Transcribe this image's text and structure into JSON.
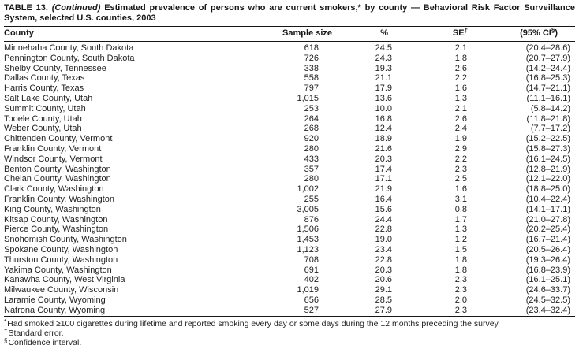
{
  "title": {
    "label": "TABLE 13.",
    "continued": "(Continued)",
    "text": "Estimated prevalence of persons who are current smokers,* by county — Behavioral Risk Factor Surveillance System, selected U.S. counties, 2003"
  },
  "table": {
    "columns": {
      "county": "County",
      "sample_size": "Sample size",
      "percent": "%",
      "se": "SE",
      "se_sup": "†",
      "ci_pre": "(95% CI",
      "ci_sup": "§",
      "ci_post": ")"
    },
    "rows": [
      {
        "county": "Minnehaha County, South Dakota",
        "n": "618",
        "pct": "24.5",
        "se": "2.1",
        "ci": "(20.4–28.6)"
      },
      {
        "county": "Pennington County, South Dakota",
        "n": "726",
        "pct": "24.3",
        "se": "1.8",
        "ci": "(20.7–27.9)"
      },
      {
        "county": "Shelby County, Tennessee",
        "n": "338",
        "pct": "19.3",
        "se": "2.6",
        "ci": "(14.2–24.4)"
      },
      {
        "county": "Dallas County, Texas",
        "n": "558",
        "pct": "21.1",
        "se": "2.2",
        "ci": "(16.8–25.3)"
      },
      {
        "county": "Harris County, Texas",
        "n": "797",
        "pct": "17.9",
        "se": "1.6",
        "ci": "(14.7–21.1)"
      },
      {
        "county": "Salt Lake County, Utah",
        "n": "1,015",
        "pct": "13.6",
        "se": "1.3",
        "ci": "(11.1–16.1)"
      },
      {
        "county": "Summit County, Utah",
        "n": "253",
        "pct": "10.0",
        "se": "2.1",
        "ci": "(5.8–14.2)"
      },
      {
        "county": "Tooele County, Utah",
        "n": "264",
        "pct": "16.8",
        "se": "2.6",
        "ci": "(11.8–21.8)"
      },
      {
        "county": "Weber County, Utah",
        "n": "268",
        "pct": "12.4",
        "se": "2.4",
        "ci": "(7.7–17.2)"
      },
      {
        "county": "Chittenden County, Vermont",
        "n": "920",
        "pct": "18.9",
        "se": "1.9",
        "ci": "(15.2–22.5)"
      },
      {
        "county": "Franklin County, Vermont",
        "n": "280",
        "pct": "21.6",
        "se": "2.9",
        "ci": "(15.8–27.3)"
      },
      {
        "county": "Windsor County, Vermont",
        "n": "433",
        "pct": "20.3",
        "se": "2.2",
        "ci": "(16.1–24.5)"
      },
      {
        "county": "Benton County, Washington",
        "n": "357",
        "pct": "17.4",
        "se": "2.3",
        "ci": "(12.8–21.9)"
      },
      {
        "county": "Chelan County, Washington",
        "n": "280",
        "pct": "17.1",
        "se": "2.5",
        "ci": "(12.1–22.0)"
      },
      {
        "county": "Clark County, Washington",
        "n": "1,002",
        "pct": "21.9",
        "se": "1.6",
        "ci": "(18.8–25.0)"
      },
      {
        "county": "Franklin County, Washington",
        "n": "255",
        "pct": "16.4",
        "se": "3.1",
        "ci": "(10.4–22.4)"
      },
      {
        "county": "King County, Washington",
        "n": "3,005",
        "pct": "15.6",
        "se": "0.8",
        "ci": "(14.1–17.1)"
      },
      {
        "county": "Kitsap County, Washington",
        "n": "876",
        "pct": "24.4",
        "se": "1.7",
        "ci": "(21.0–27.8)"
      },
      {
        "county": "Pierce County, Washington",
        "n": "1,506",
        "pct": "22.8",
        "se": "1.3",
        "ci": "(20.2–25.4)"
      },
      {
        "county": "Snohomish County, Washington",
        "n": "1,453",
        "pct": "19.0",
        "se": "1.2",
        "ci": "(16.7–21.4)"
      },
      {
        "county": "Spokane County, Washington",
        "n": "1,123",
        "pct": "23.4",
        "se": "1.5",
        "ci": "(20.5–26.4)"
      },
      {
        "county": "Thurston County, Washington",
        "n": "708",
        "pct": "22.8",
        "se": "1.8",
        "ci": "(19.3–26.4)"
      },
      {
        "county": "Yakima County, Washington",
        "n": "691",
        "pct": "20.3",
        "se": "1.8",
        "ci": "(16.8–23.9)"
      },
      {
        "county": "Kanawha County, West Virginia",
        "n": "402",
        "pct": "20.6",
        "se": "2.3",
        "ci": "(16.1–25.1)"
      },
      {
        "county": "Milwaukee County, Wisconsin",
        "n": "1,019",
        "pct": "29.1",
        "se": "2.3",
        "ci": "(24.6–33.7)"
      },
      {
        "county": "Laramie County, Wyoming",
        "n": "656",
        "pct": "28.5",
        "se": "2.0",
        "ci": "(24.5–32.5)"
      },
      {
        "county": "Natrona County, Wyoming",
        "n": "527",
        "pct": "27.9",
        "se": "2.3",
        "ci": "(23.4–32.4)"
      }
    ]
  },
  "footnotes": [
    {
      "marker": "*",
      "text": "Had smoked ≥100 cigarettes during lifetime and reported smoking every day or some days during the 12 months preceding the survey."
    },
    {
      "marker": "†",
      "text": "Standard error."
    },
    {
      "marker": "§",
      "text": "Confidence interval."
    }
  ]
}
